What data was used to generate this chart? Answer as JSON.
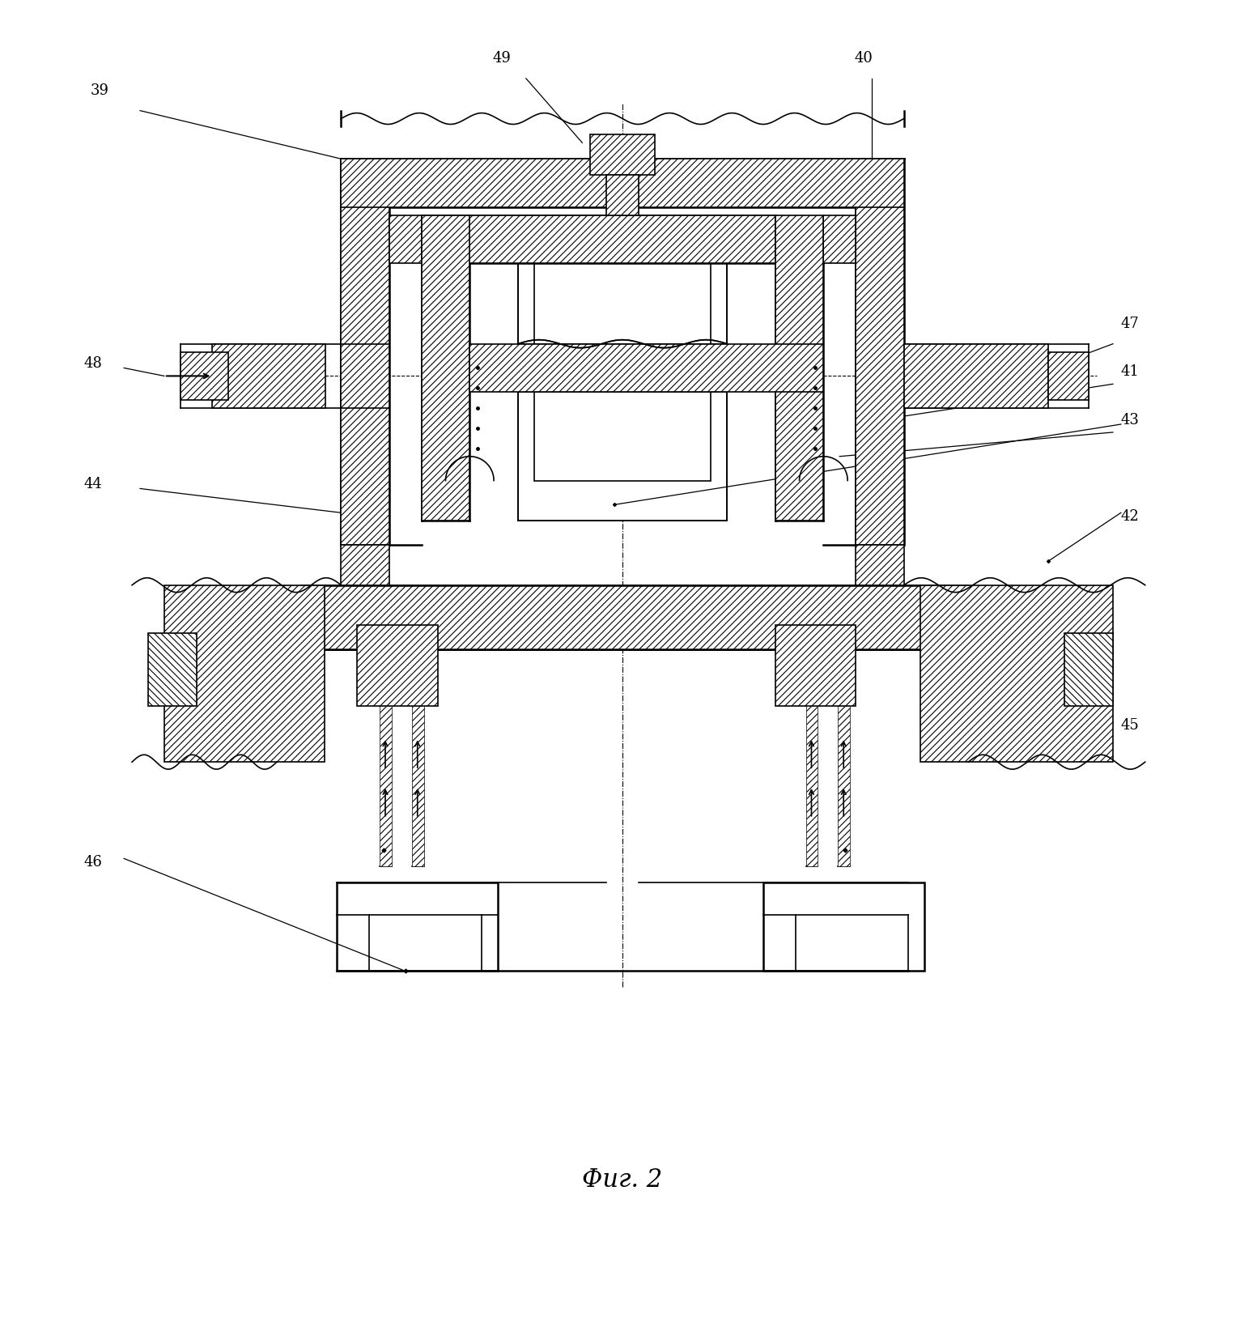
{
  "title": "Фиг. 2",
  "bg": "#ffffff",
  "lc": "#000000",
  "fig_w": 15.48,
  "fig_h": 16.44
}
